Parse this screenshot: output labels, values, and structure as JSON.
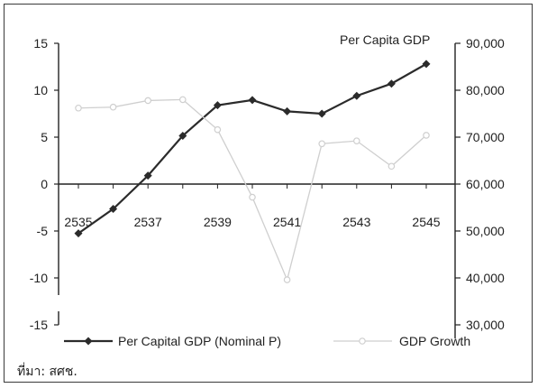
{
  "chart_data": {
    "type": "line",
    "title": "",
    "right_axis_title": "Per Capita GDP",
    "x_tick_labels": [
      "2535",
      "2537",
      "2539",
      "2541",
      "2543",
      "2545"
    ],
    "x": [
      2535,
      2536,
      2537,
      2538,
      2539,
      2540,
      2541,
      2542,
      2543,
      2544,
      2545
    ],
    "left_axis": {
      "ylim": [
        -15,
        15
      ],
      "ticks": [
        "15",
        "10",
        "5",
        "0",
        "-5",
        "-10",
        "-15"
      ]
    },
    "right_axis": {
      "ylim": [
        30000,
        90000
      ],
      "ticks": [
        "90,000",
        "80,000",
        "70,000",
        "60,000",
        "50,000",
        "40,000",
        "30,000"
      ]
    },
    "series": [
      {
        "name": "Per Capital GDP (Nominal P)",
        "axis": "right",
        "color": "#2b2b2b",
        "marker": "diamond",
        "values": [
          49500,
          54700,
          61800,
          70300,
          76800,
          77900,
          75500,
          75000,
          78800,
          81400,
          85600
        ]
      },
      {
        "name": "GDP Growth",
        "axis": "left",
        "color": "#cfcfcf",
        "marker": "circle",
        "values": [
          8.1,
          8.2,
          8.9,
          9.0,
          5.8,
          -1.4,
          -10.2,
          4.3,
          4.6,
          1.9,
          5.2
        ]
      }
    ],
    "legend_position": "bottom",
    "grid": false
  },
  "source_note": "ที่มา: สศช."
}
